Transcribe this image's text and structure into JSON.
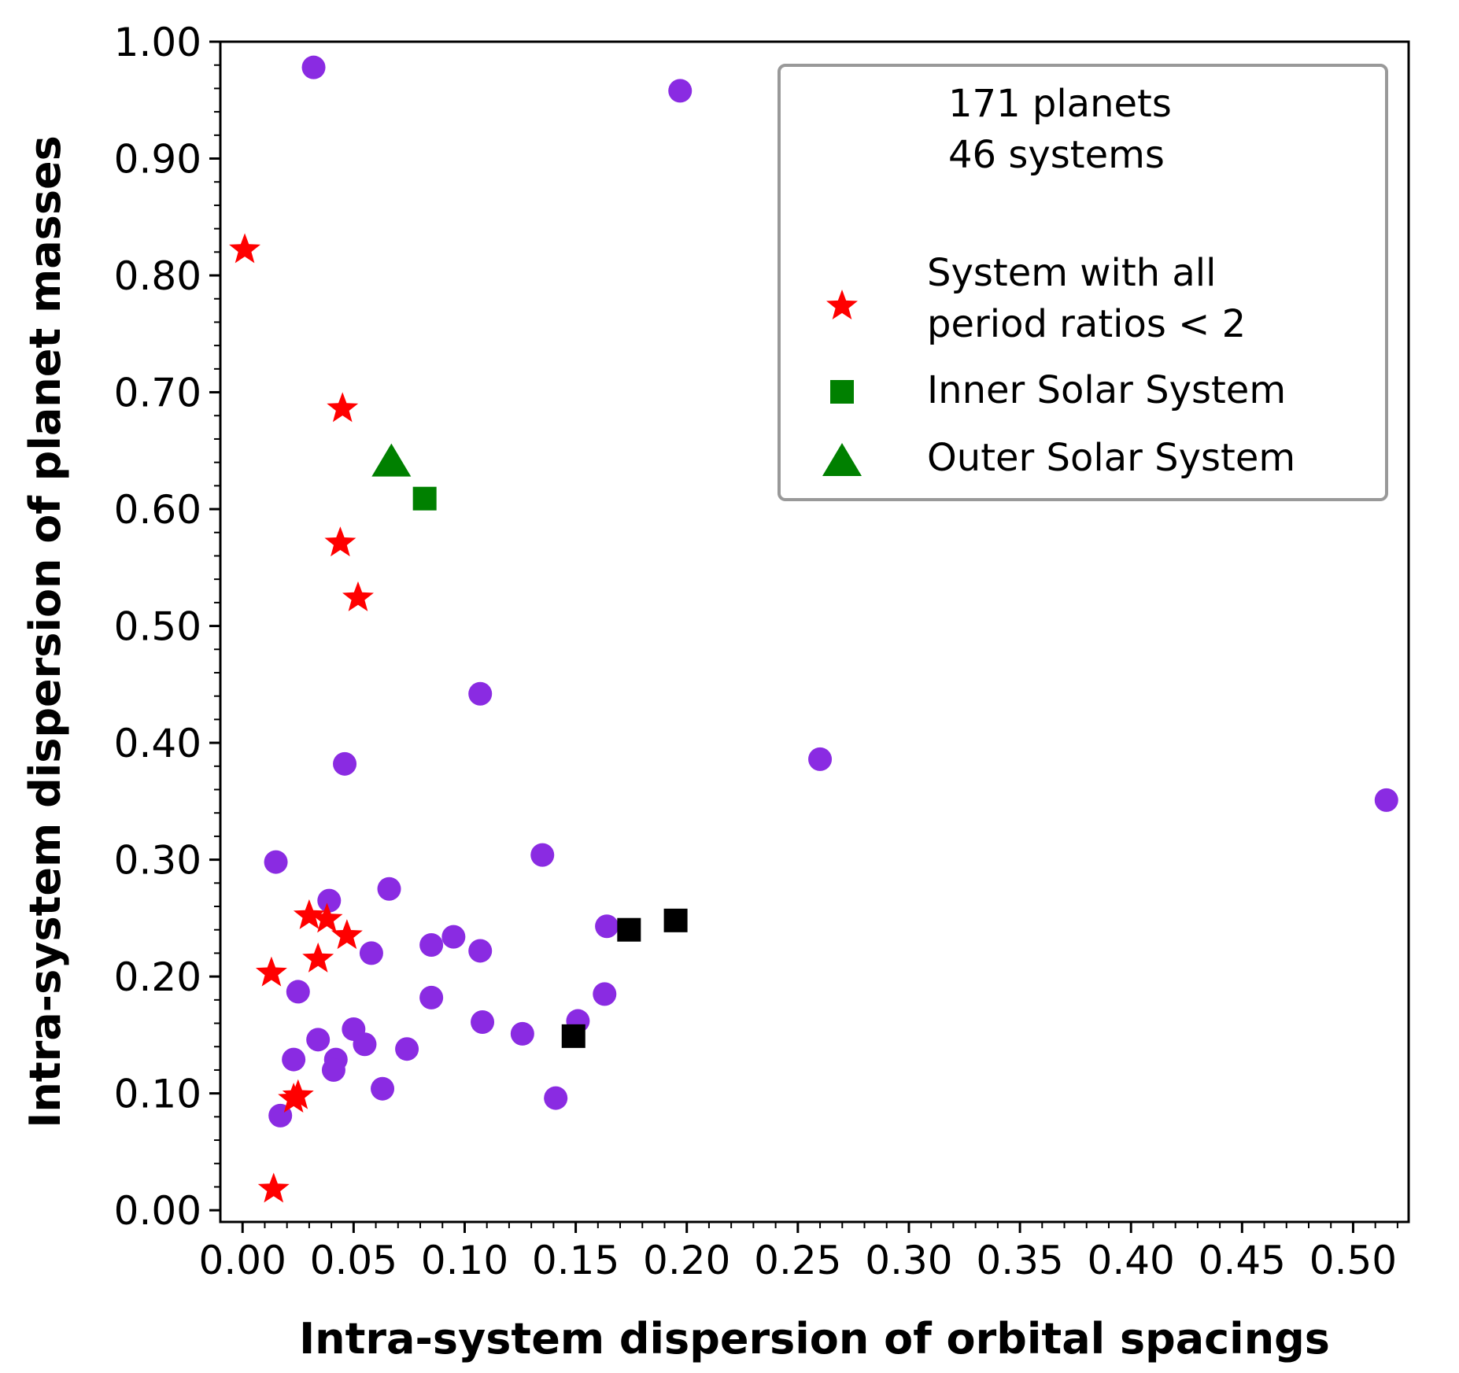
{
  "chart_data": {
    "type": "scatter",
    "xlabel": "Intra-system dispersion of orbital spacings",
    "ylabel": "Intra-system dispersion of planet masses",
    "xlim": [
      -0.01,
      0.525
    ],
    "ylim": [
      -0.01,
      1.0
    ],
    "x_ticks": [
      "0.00",
      "0.05",
      "0.10",
      "0.15",
      "0.20",
      "0.25",
      "0.30",
      "0.35",
      "0.40",
      "0.45",
      "0.50"
    ],
    "x_tick_values": [
      0.0,
      0.05,
      0.1,
      0.15,
      0.2,
      0.25,
      0.3,
      0.35,
      0.4,
      0.45,
      0.5
    ],
    "y_ticks": [
      "0.00",
      "0.10",
      "0.20",
      "0.30",
      "0.40",
      "0.50",
      "0.60",
      "0.70",
      "0.80",
      "0.90",
      "1.00"
    ],
    "y_tick_values": [
      0.0,
      0.1,
      0.2,
      0.3,
      0.4,
      0.5,
      0.6,
      0.7,
      0.8,
      0.9,
      1.0
    ],
    "legend": {
      "annotation_lines": [
        "171 planets",
        "46 systems"
      ],
      "entries": [
        {
          "label_lines": [
            "System with all",
            "period ratios < 2"
          ],
          "marker": "star",
          "color": "#ff0000"
        },
        {
          "label_lines": [
            "Inner Solar System"
          ],
          "marker": "square",
          "color": "#008000"
        },
        {
          "label_lines": [
            "Outer Solar System"
          ],
          "marker": "triangle",
          "color": "#008000"
        }
      ],
      "position": "top-right"
    },
    "series": [
      {
        "name": "Systems",
        "marker": "circle",
        "color": "#8a2be2",
        "points": [
          [
            0.032,
            0.978
          ],
          [
            0.197,
            0.958
          ],
          [
            0.107,
            0.442
          ],
          [
            0.046,
            0.382
          ],
          [
            0.26,
            0.386
          ],
          [
            0.515,
            0.351
          ],
          [
            0.015,
            0.298
          ],
          [
            0.135,
            0.304
          ],
          [
            0.066,
            0.275
          ],
          [
            0.039,
            0.265
          ],
          [
            0.164,
            0.243
          ],
          [
            0.095,
            0.234
          ],
          [
            0.085,
            0.227
          ],
          [
            0.107,
            0.222
          ],
          [
            0.058,
            0.22
          ],
          [
            0.025,
            0.187
          ],
          [
            0.163,
            0.185
          ],
          [
            0.085,
            0.182
          ],
          [
            0.151,
            0.162
          ],
          [
            0.108,
            0.161
          ],
          [
            0.05,
            0.155
          ],
          [
            0.126,
            0.151
          ],
          [
            0.034,
            0.146
          ],
          [
            0.055,
            0.142
          ],
          [
            0.074,
            0.138
          ],
          [
            0.023,
            0.129
          ],
          [
            0.042,
            0.129
          ],
          [
            0.041,
            0.12
          ],
          [
            0.063,
            0.104
          ],
          [
            0.141,
            0.096
          ],
          [
            0.017,
            0.081
          ]
        ]
      },
      {
        "name": "System with all period ratios < 2",
        "marker": "star",
        "color": "#ff0000",
        "points": [
          [
            0.001,
            0.822
          ],
          [
            0.045,
            0.686
          ],
          [
            0.044,
            0.571
          ],
          [
            0.052,
            0.524
          ],
          [
            0.03,
            0.252
          ],
          [
            0.038,
            0.249
          ],
          [
            0.047,
            0.235
          ],
          [
            0.034,
            0.215
          ],
          [
            0.013,
            0.203
          ],
          [
            0.025,
            0.098
          ],
          [
            0.023,
            0.095
          ],
          [
            0.014,
            0.018
          ]
        ]
      },
      {
        "name": "Black squares",
        "marker": "square",
        "color": "#000000",
        "points": [
          [
            0.149,
            0.149
          ],
          [
            0.174,
            0.24
          ],
          [
            0.195,
            0.248
          ]
        ]
      },
      {
        "name": "Inner Solar System",
        "marker": "square",
        "color": "#008000",
        "points": [
          [
            0.082,
            0.609
          ]
        ]
      },
      {
        "name": "Outer Solar System",
        "marker": "triangle",
        "color": "#008000",
        "points": [
          [
            0.067,
            0.642
          ]
        ]
      }
    ]
  }
}
